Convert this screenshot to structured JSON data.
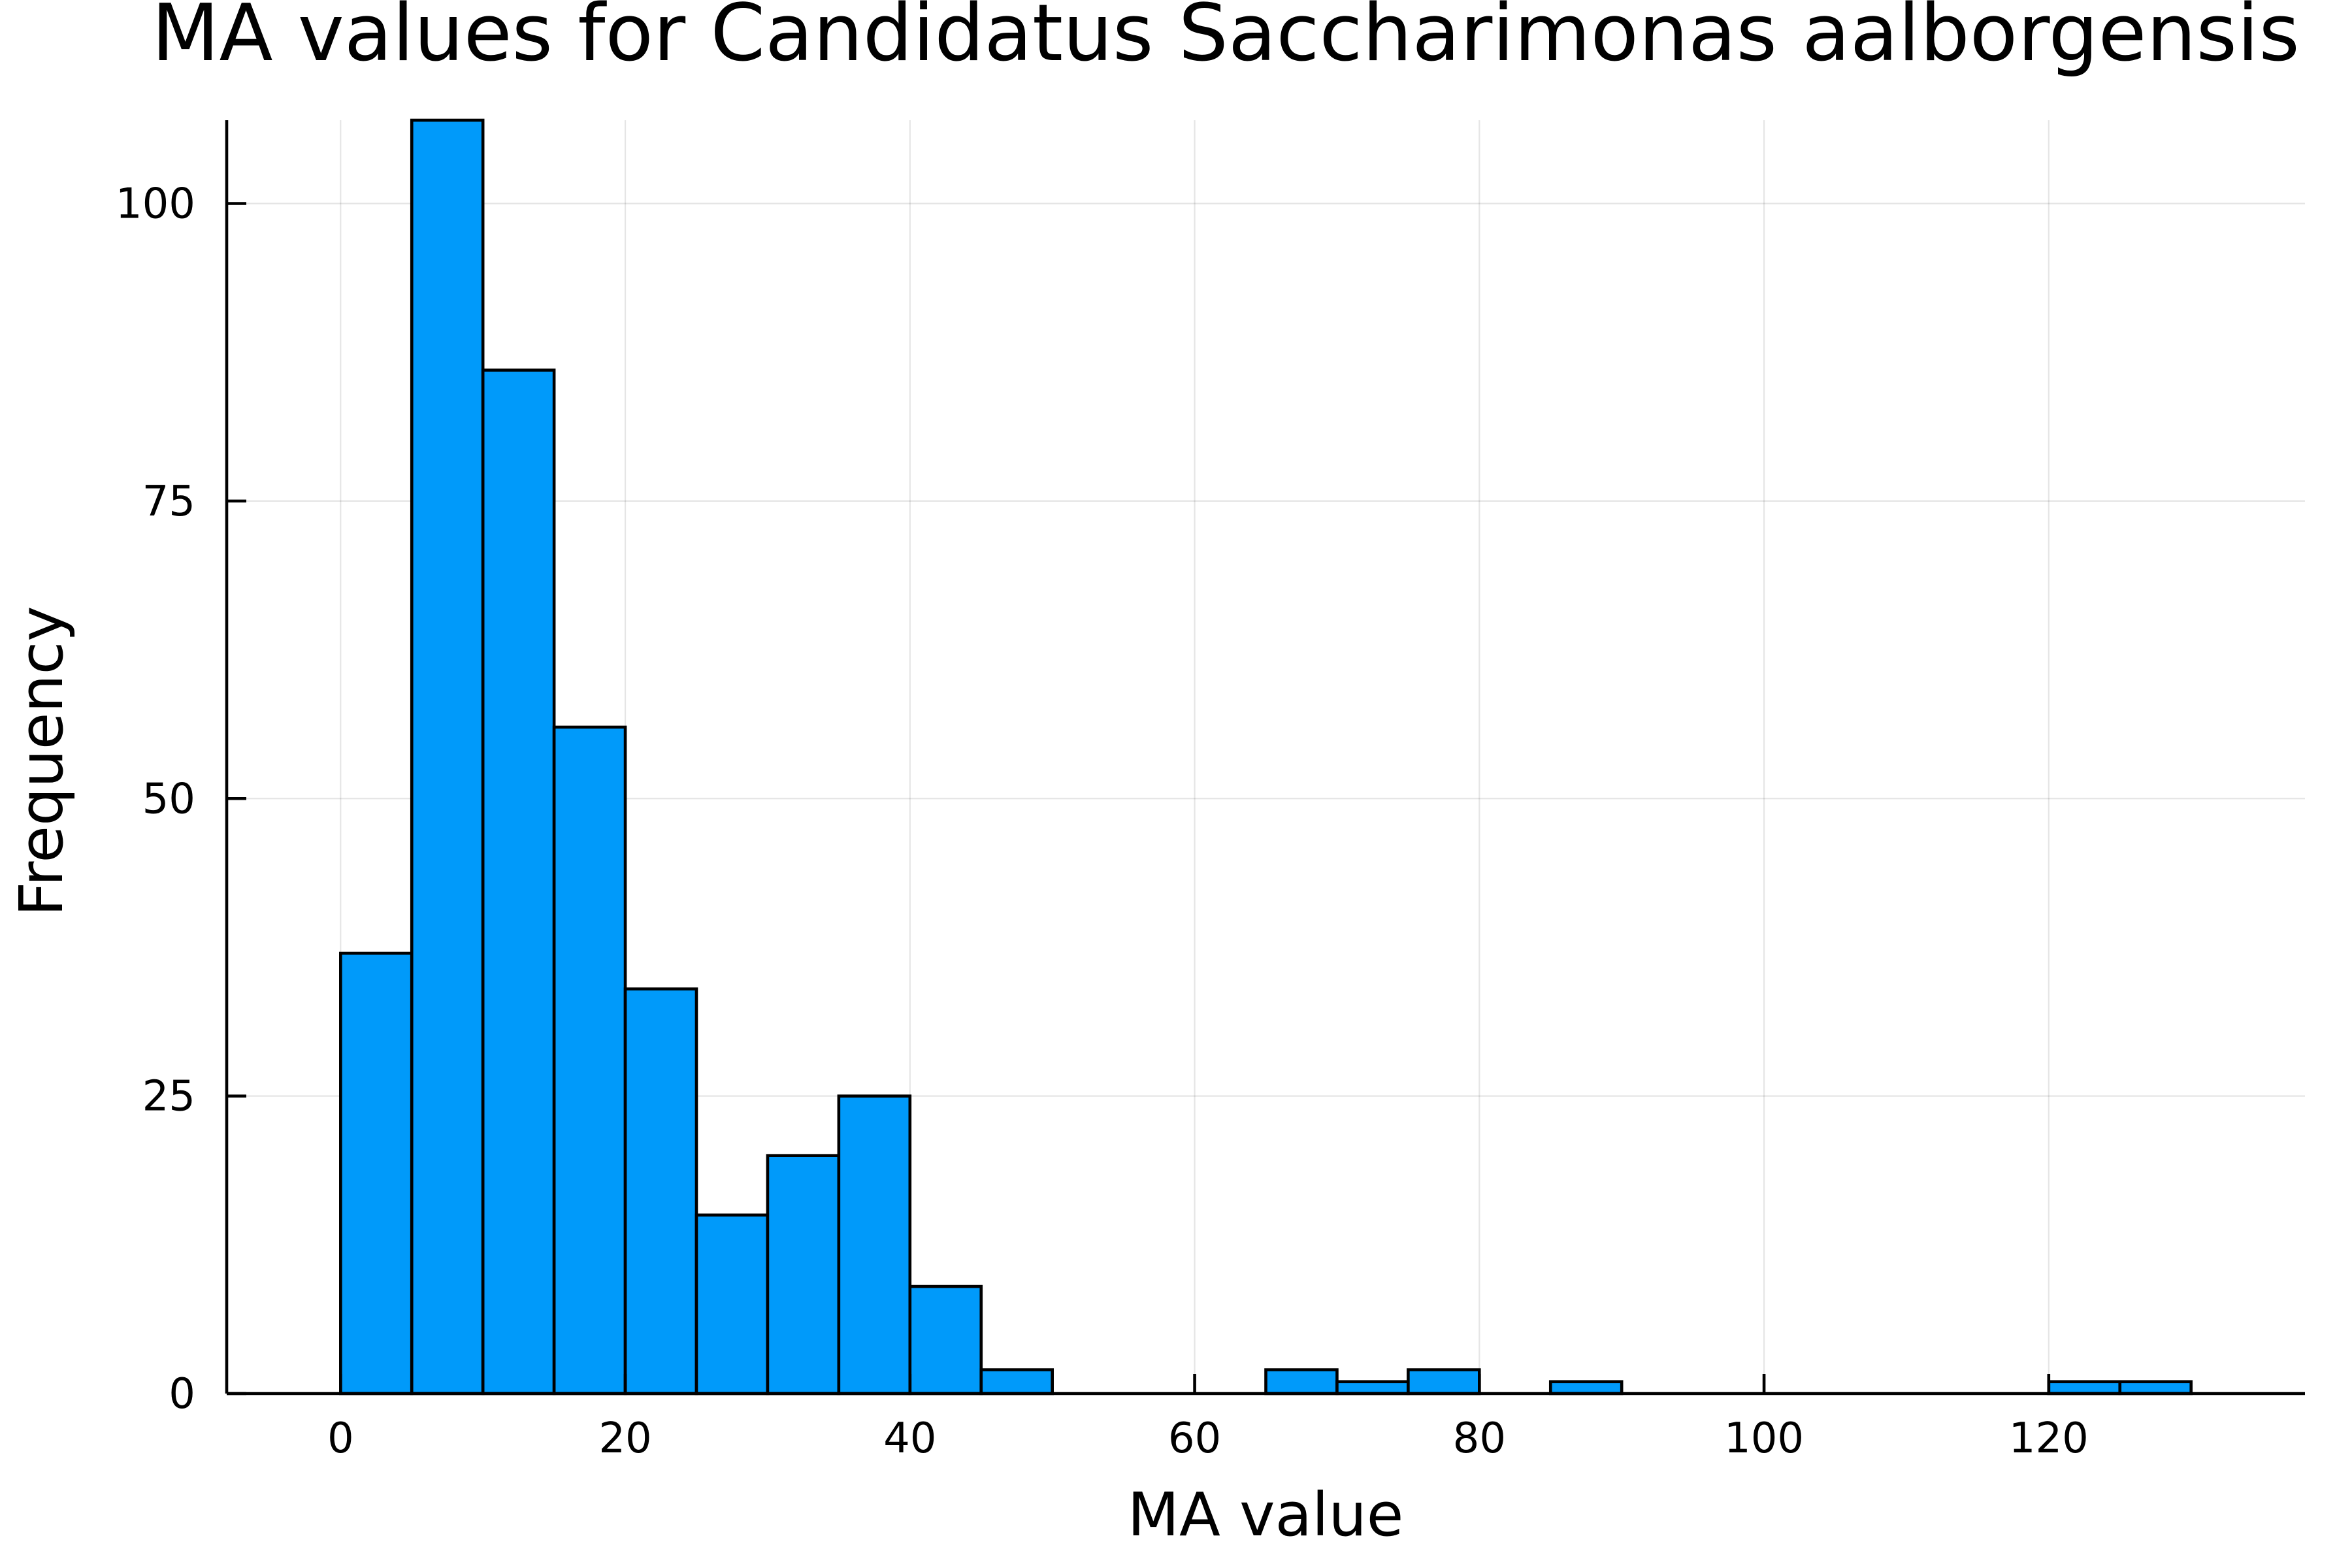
{
  "chart_data": {
    "type": "bar",
    "title": "MA values for Candidatus Saccharimonas aalborgensis",
    "xlabel": "MA value",
    "ylabel": "Frequency",
    "bin_edges": [
      0,
      5,
      10,
      15,
      20,
      25,
      30,
      35,
      40,
      45,
      50,
      55,
      60,
      65,
      70,
      75,
      80,
      85,
      90,
      95,
      100,
      105,
      110,
      115,
      120,
      125,
      130
    ],
    "values": [
      37,
      107,
      86,
      56,
      34,
      15,
      20,
      25,
      9,
      2,
      0,
      0,
      0,
      2,
      1,
      2,
      0,
      1,
      0,
      0,
      0,
      0,
      0,
      0,
      1,
      1
    ],
    "xlim": [
      -8,
      138
    ],
    "ylim": [
      0,
      107
    ],
    "xticks": [
      0,
      20,
      40,
      60,
      80,
      100,
      120
    ],
    "xtick_labels": [
      "0",
      "20",
      "40",
      "60",
      "80",
      "100",
      "120"
    ],
    "yticks": [
      0,
      25,
      50,
      75,
      100
    ],
    "ytick_labels": [
      "0",
      "25",
      "50",
      "75",
      "100"
    ],
    "grid": true,
    "legend": false,
    "colors": {
      "bar_fill": "#009AFA",
      "bar_edge": "#000000"
    }
  }
}
